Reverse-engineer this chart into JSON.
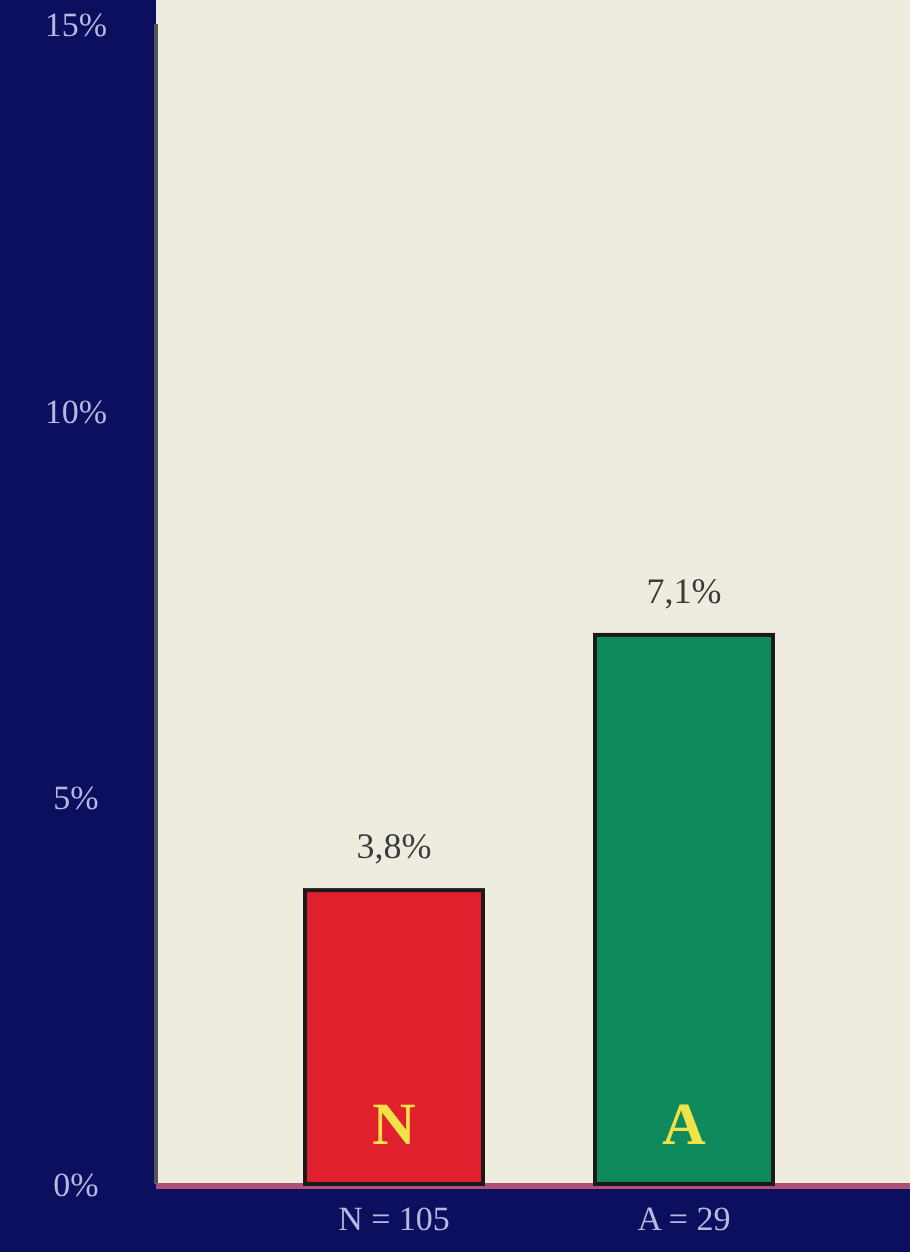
{
  "chart_data": {
    "type": "bar",
    "categories": [
      "N = 105",
      "A = 29"
    ],
    "values": [
      3.8,
      7.1
    ],
    "colors": [
      "#e0202c",
      "#0e8a5c"
    ],
    "value_labels": [
      "3,8%",
      "7,1%"
    ],
    "ylim": [
      0,
      15
    ],
    "yticks": [
      {
        "value": 0,
        "label": "0%"
      },
      {
        "value": 5,
        "label": "5%"
      },
      {
        "value": 10,
        "label": "10%"
      },
      {
        "value": 15,
        "label": "15%"
      }
    ],
    "annotations": [
      "N",
      "A"
    ],
    "grid": false
  }
}
